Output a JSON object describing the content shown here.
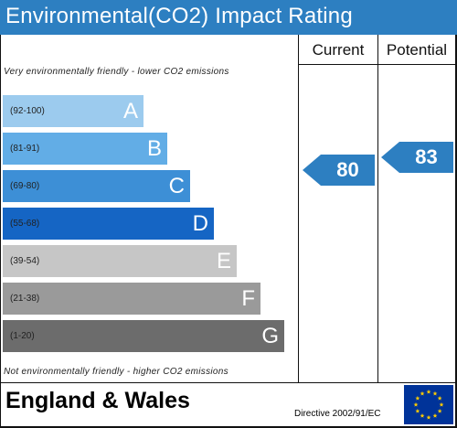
{
  "title": "Environmental(CO2) Impact Rating",
  "columns": {
    "current": "Current",
    "potential": "Potential"
  },
  "notes": {
    "top": "Very environmentally friendly - lower CO2 emissions",
    "bottom": "Not environmentally friendly - higher CO2 emissions"
  },
  "footer": {
    "country": "England & Wales",
    "directive": "Directive 2002/91/EC"
  },
  "colors": {
    "title_bar": "#2d7fc1",
    "arrow": "#2d7fc1",
    "eu_flag": "#003399",
    "eu_stars": "#ffcc00"
  },
  "chart_data": {
    "type": "bar",
    "bands": [
      {
        "letter": "A",
        "range": "(92-100)",
        "color": "#9ccbee"
      },
      {
        "letter": "B",
        "range": "(81-91)",
        "color": "#62ade6"
      },
      {
        "letter": "C",
        "range": "(69-80)",
        "color": "#3d8fd6"
      },
      {
        "letter": "D",
        "range": "(55-68)",
        "color": "#1565c4"
      },
      {
        "letter": "E",
        "range": "(39-54)",
        "color": "#c6c6c6"
      },
      {
        "letter": "F",
        "range": "(21-38)",
        "color": "#9a9a9a"
      },
      {
        "letter": "G",
        "range": "(1-20)",
        "color": "#6c6c6c"
      }
    ],
    "ratings": {
      "current": 80,
      "potential": 83
    }
  }
}
